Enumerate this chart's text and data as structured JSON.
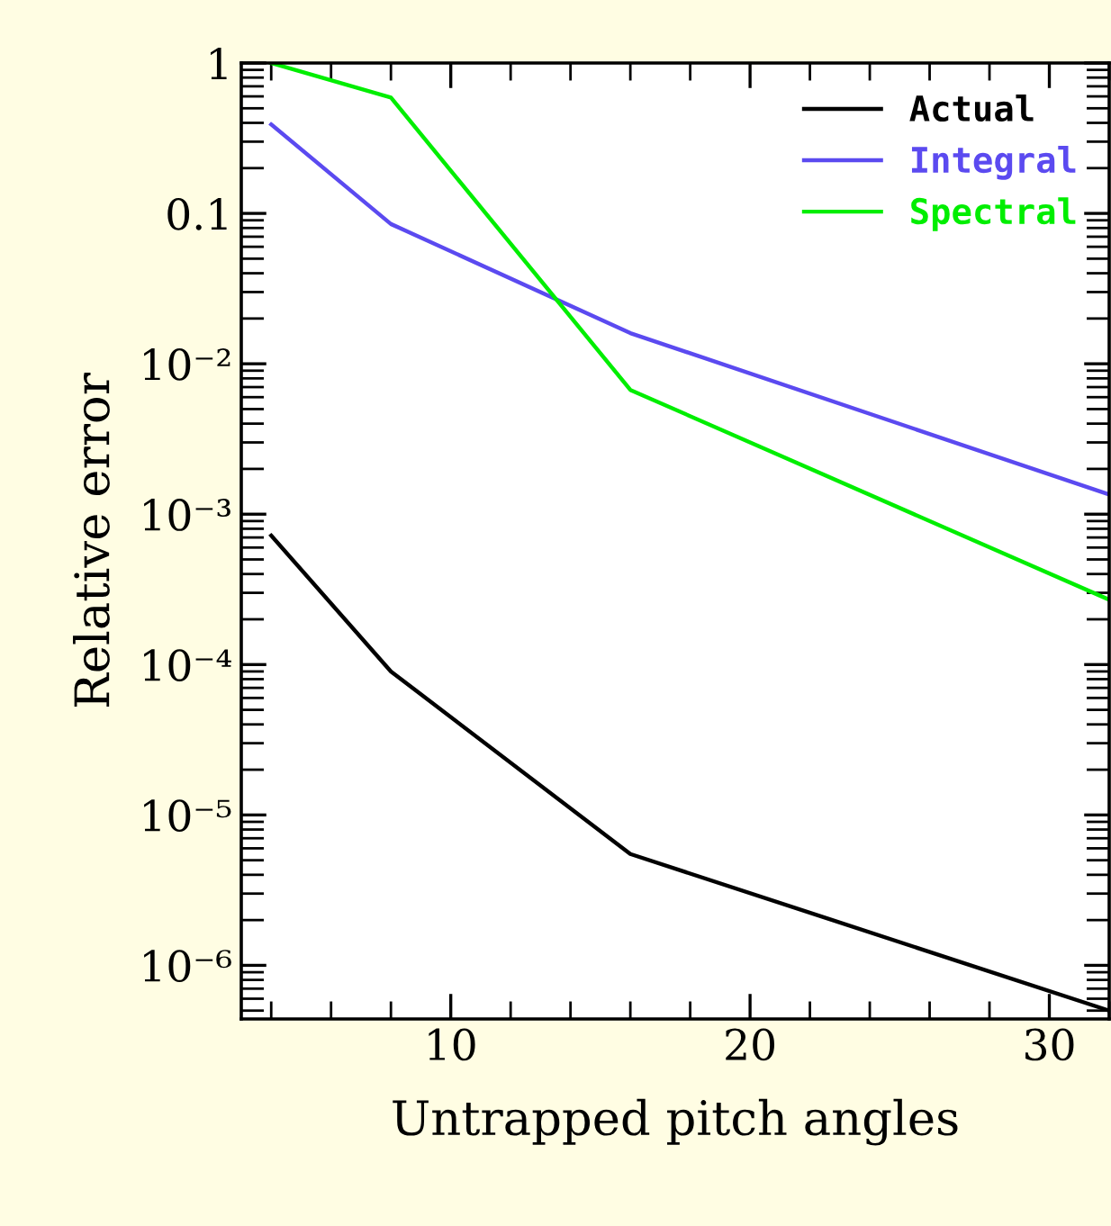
{
  "chart_data": {
    "type": "line",
    "xlabel": "Untrapped pitch angles",
    "ylabel": "Relative error",
    "x": [
      4,
      8,
      16,
      32
    ],
    "series": [
      {
        "name": "Actual",
        "color": "#000000",
        "values": [
          0.00072,
          9e-05,
          5.5e-06,
          5e-07
        ]
      },
      {
        "name": "Integral",
        "color": "#5b4af0",
        "values": [
          0.39,
          0.085,
          0.016,
          0.00135
        ]
      },
      {
        "name": "Spectral",
        "color": "#00ee00",
        "values": [
          1,
          0.59,
          0.0067,
          0.00027
        ]
      }
    ],
    "log": "y",
    "xlim": [
      3,
      32
    ],
    "xticks": [
      10,
      20,
      30
    ],
    "ylim": [
      4.4e-07,
      1
    ],
    "yticks": [
      {
        "value": 1,
        "label": "1"
      },
      {
        "value": 0.1,
        "label": "0.1"
      },
      {
        "value": 0.01,
        "label": "10⁻²"
      },
      {
        "value": 0.001,
        "label": "10⁻³"
      },
      {
        "value": 0.0001,
        "label": "10⁻⁴"
      },
      {
        "value": 1e-05,
        "label": "10⁻⁵"
      },
      {
        "value": 1e-06,
        "label": "10⁻⁶"
      }
    ],
    "grid": false,
    "legend": "top right",
    "marker": "none",
    "line_style": "solid"
  }
}
